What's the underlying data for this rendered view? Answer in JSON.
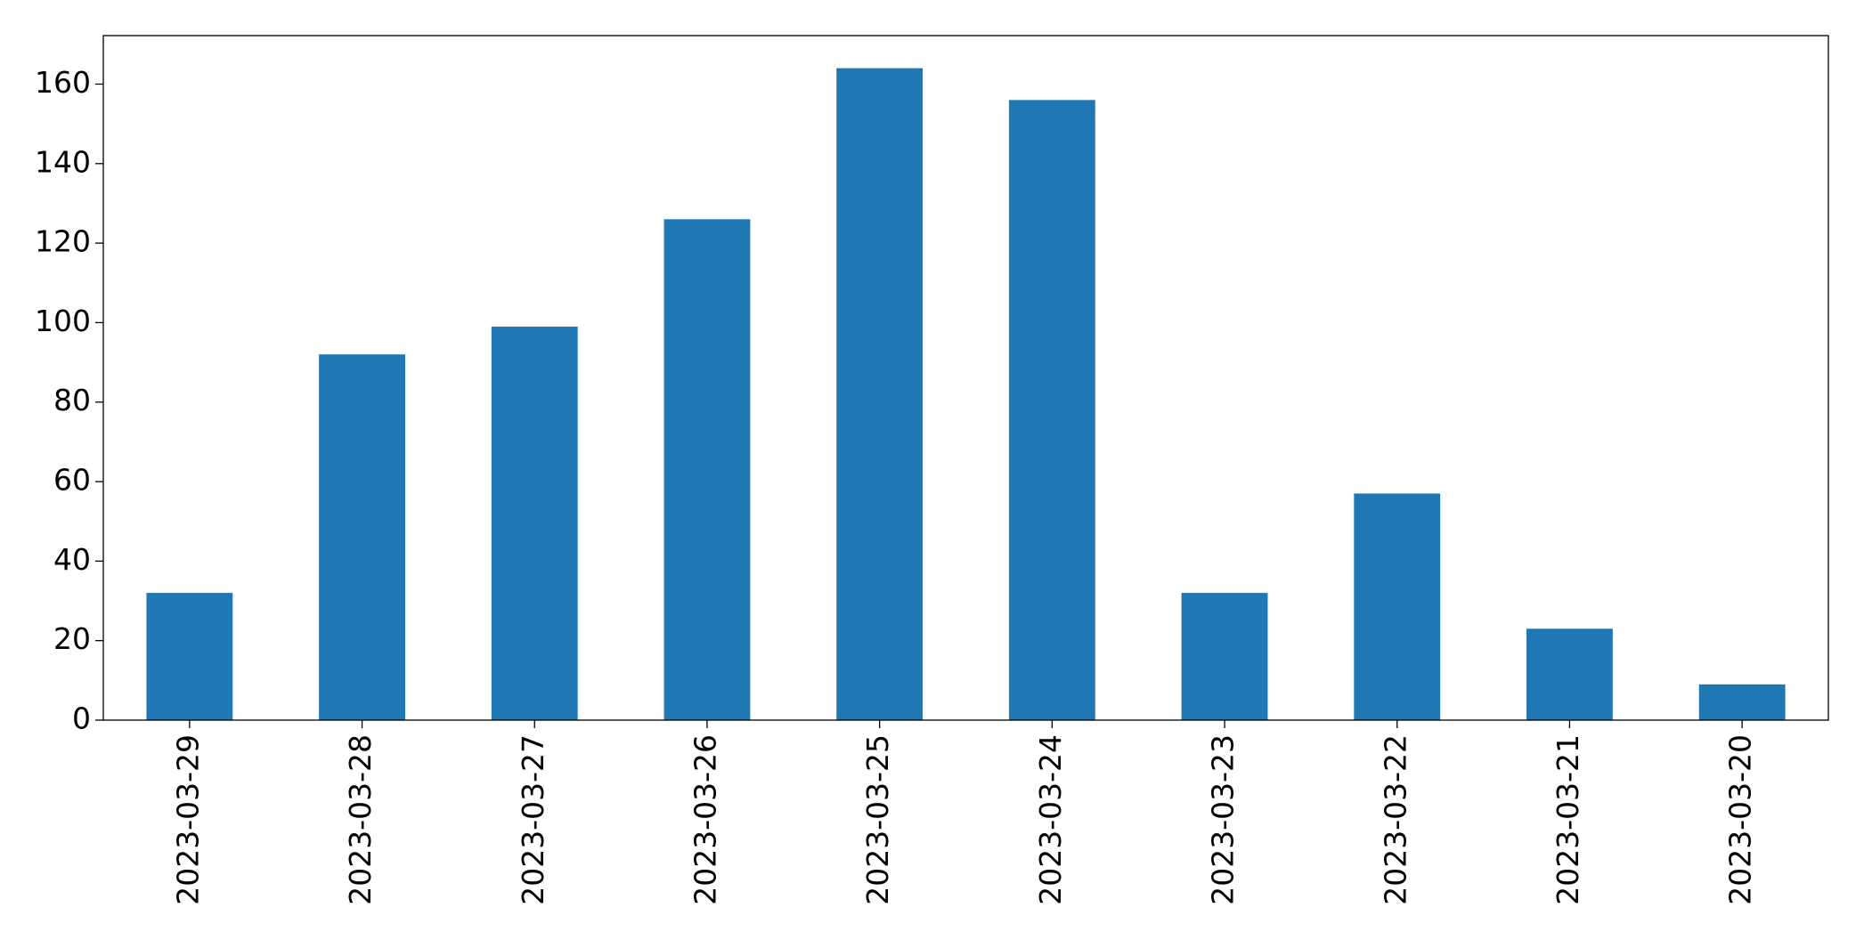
{
  "chart_data": {
    "type": "bar",
    "categories": [
      "2023-03-29",
      "2023-03-28",
      "2023-03-27",
      "2023-03-26",
      "2023-03-25",
      "2023-03-24",
      "2023-03-23",
      "2023-03-22",
      "2023-03-21",
      "2023-03-20"
    ],
    "values": [
      32,
      92,
      99,
      126,
      164,
      156,
      32,
      57,
      23,
      9
    ],
    "color": "#1f77b4",
    "ylim": [
      0,
      172.2
    ],
    "yticks": [
      0,
      20,
      40,
      60,
      80,
      100,
      120,
      140,
      160
    ],
    "grid": false
  }
}
